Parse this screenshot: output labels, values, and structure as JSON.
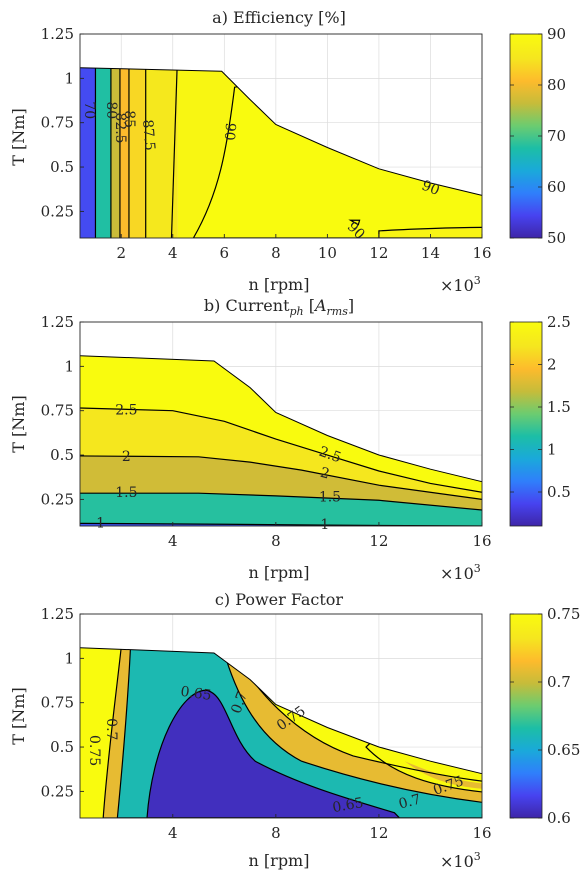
{
  "colors": {
    "parula": [
      "#3e26a8",
      "#4743f0",
      "#2f7ffb",
      "#1aa9da",
      "#1cbea6",
      "#6ccc70",
      "#c6bc3a",
      "#fdbb2c",
      "#f5e61f",
      "#f9fb0e"
    ]
  },
  "chart_data": [
    {
      "type": "contour",
      "title": "a) Efficiency [%]",
      "xlabel": "n [rpm]",
      "ylabel": "T [Nm]",
      "x_multiplier": "×10",
      "x_multiplier_exp": "3",
      "xlim": [
        0.4,
        16
      ],
      "ylim": [
        0.1,
        1.25
      ],
      "xticks": [
        2,
        4,
        6,
        8,
        10,
        12,
        14,
        16
      ],
      "xticklabels": [
        "2",
        "4",
        "6",
        "8",
        "10",
        "12",
        "14",
        "16"
      ],
      "yticks": [
        0.25,
        0.5,
        0.75,
        1,
        1.25
      ],
      "yticklabels": [
        "0.25",
        "0.5",
        "0.75",
        "1",
        "1.25"
      ],
      "colorbar": {
        "range": [
          50,
          90
        ],
        "ticks": [
          50,
          60,
          70,
          80,
          90
        ],
        "ticklabels": [
          "50",
          "60",
          "70",
          "80",
          "90"
        ]
      },
      "envelope": [
        [
          0.4,
          1.06
        ],
        [
          5.9,
          1.04
        ],
        [
          7,
          0.88
        ],
        [
          8,
          0.74
        ],
        [
          10,
          0.61
        ],
        [
          12,
          0.49
        ],
        [
          14,
          0.41
        ],
        [
          16,
          0.34
        ]
      ],
      "band_boundaries_x": [
        0.4,
        1.0,
        1.6,
        1.95,
        2.3,
        2.95,
        4.2,
        16
      ],
      "band_values": [
        55,
        68,
        77,
        81,
        84,
        86,
        89
      ],
      "contour_labels": [
        {
          "text": "70",
          "x": 0.75,
          "y": 0.82,
          "rot": 90
        },
        {
          "text": "80",
          "x": 1.6,
          "y": 0.82,
          "rot": 90
        },
        {
          "text": "82.5",
          "x": 1.95,
          "y": 0.72,
          "rot": 90
        },
        {
          "text": "85",
          "x": 2.3,
          "y": 0.77,
          "rot": 90
        },
        {
          "text": "87.5",
          "x": 3.05,
          "y": 0.68,
          "rot": 85
        },
        {
          "text": "90",
          "x": 6.2,
          "y": 0.7,
          "rot": 95
        },
        {
          "text": "90",
          "x": 14,
          "y": 0.38,
          "rot": 22
        },
        {
          "text": "90",
          "x": 11.1,
          "y": 0.14,
          "rot": 45
        }
      ]
    },
    {
      "type": "contour",
      "title": "b) Current",
      "title_sub": "ph",
      "title_unit": "A",
      "title_unit_sub": "rms",
      "xlabel": "n [rpm]",
      "ylabel": "T [Nm]",
      "x_multiplier": "×10",
      "x_multiplier_exp": "3",
      "xlim": [
        0.4,
        16
      ],
      "ylim": [
        0.1,
        1.25
      ],
      "xticks": [
        4,
        8,
        12,
        16
      ],
      "xticklabels": [
        "4",
        "8",
        "12",
        "16"
      ],
      "yticks": [
        0.25,
        0.5,
        0.75,
        1,
        1.25
      ],
      "yticklabels": [
        "0.25",
        "0.5",
        "0.75",
        "1",
        "1.25"
      ],
      "colorbar": {
        "range": [
          0.1,
          2.5
        ],
        "ticks": [
          0.5,
          1,
          1.5,
          2,
          2.5
        ],
        "ticklabels": [
          "0.5",
          "1",
          "1.5",
          "2",
          "2.5"
        ]
      },
      "envelope": [
        [
          0.4,
          1.06
        ],
        [
          5.6,
          1.03
        ],
        [
          7,
          0.88
        ],
        [
          8,
          0.74
        ],
        [
          10,
          0.61
        ],
        [
          12,
          0.5
        ],
        [
          14,
          0.42
        ],
        [
          16,
          0.35
        ]
      ],
      "contours": [
        {
          "level": 1,
          "points": [
            [
              0.4,
              0.115
            ],
            [
              6,
              0.11
            ],
            [
              10,
              0.105
            ],
            [
              16,
              0.1
            ]
          ]
        },
        {
          "level": 1.5,
          "points": [
            [
              0.4,
              0.285
            ],
            [
              5,
              0.285
            ],
            [
              8,
              0.27
            ],
            [
              12,
              0.245
            ],
            [
              16,
              0.19
            ]
          ]
        },
        {
          "level": 2,
          "points": [
            [
              0.4,
              0.495
            ],
            [
              5,
              0.49
            ],
            [
              7,
              0.46
            ],
            [
              9,
              0.415
            ],
            [
              12,
              0.33
            ],
            [
              16,
              0.25
            ]
          ]
        },
        {
          "level": 2.5,
          "points": [
            [
              0.4,
              0.765
            ],
            [
              4,
              0.75
            ],
            [
              6,
              0.69
            ],
            [
              8,
              0.59
            ],
            [
              10,
              0.5
            ],
            [
              12,
              0.41
            ],
            [
              14,
              0.34
            ],
            [
              16,
              0.29
            ]
          ]
        }
      ],
      "contour_labels": [
        {
          "text": "2.5",
          "x": 2.2,
          "y": 0.75,
          "rot": 0
        },
        {
          "text": "2",
          "x": 2.2,
          "y": 0.49,
          "rot": 0
        },
        {
          "text": "1.5",
          "x": 2.2,
          "y": 0.285,
          "rot": 0
        },
        {
          "text": "1",
          "x": 1.2,
          "y": 0.115,
          "rot": 0
        },
        {
          "text": "2.5",
          "x": 10.1,
          "y": 0.5,
          "rot": 20
        },
        {
          "text": "2",
          "x": 9.9,
          "y": 0.395,
          "rot": 15
        },
        {
          "text": "1.5",
          "x": 10.1,
          "y": 0.26,
          "rot": 0
        },
        {
          "text": "1",
          "x": 9.9,
          "y": 0.105,
          "rot": 0
        }
      ]
    },
    {
      "type": "contour",
      "title": "c) Power Factor",
      "xlabel": "n [rpm]",
      "ylabel": "T [Nm]",
      "x_multiplier": "×10",
      "x_multiplier_exp": "3",
      "xlim": [
        0.4,
        16
      ],
      "ylim": [
        0.1,
        1.25
      ],
      "xticks": [
        4,
        8,
        12,
        16
      ],
      "xticklabels": [
        "4",
        "8",
        "12",
        "16"
      ],
      "yticks": [
        0.25,
        0.5,
        0.75,
        1,
        1.25
      ],
      "yticklabels": [
        "0.25",
        "0.5",
        "0.75",
        "1",
        "1.25"
      ],
      "colorbar": {
        "range": [
          0.6,
          0.75
        ],
        "ticks": [
          0.6,
          0.65,
          0.7,
          0.75
        ],
        "ticklabels": [
          "0.6",
          "0.65",
          "0.7",
          "0.75"
        ]
      },
      "envelope": [
        [
          0.4,
          1.06
        ],
        [
          5.6,
          1.03
        ],
        [
          7,
          0.88
        ],
        [
          8,
          0.74
        ],
        [
          10,
          0.61
        ],
        [
          12,
          0.5
        ],
        [
          14,
          0.42
        ],
        [
          16,
          0.35
        ]
      ],
      "contour_labels": [
        {
          "text": "0.65",
          "x": 4.9,
          "y": 0.8,
          "rot": 8
        },
        {
          "text": "0.7",
          "x": 6.6,
          "y": 0.75,
          "rot": -70
        },
        {
          "text": "0.75",
          "x": 8.6,
          "y": 0.66,
          "rot": -35
        },
        {
          "text": "0.75",
          "x": 0.95,
          "y": 0.48,
          "rot": 90
        },
        {
          "text": "0.7",
          "x": 1.6,
          "y": 0.6,
          "rot": 90
        },
        {
          "text": "0.65",
          "x": 10.8,
          "y": 0.17,
          "rot": -10
        },
        {
          "text": "0.7",
          "x": 13.2,
          "y": 0.19,
          "rot": -15
        },
        {
          "text": "0.75",
          "x": 14.7,
          "y": 0.28,
          "rot": -20
        }
      ]
    }
  ]
}
